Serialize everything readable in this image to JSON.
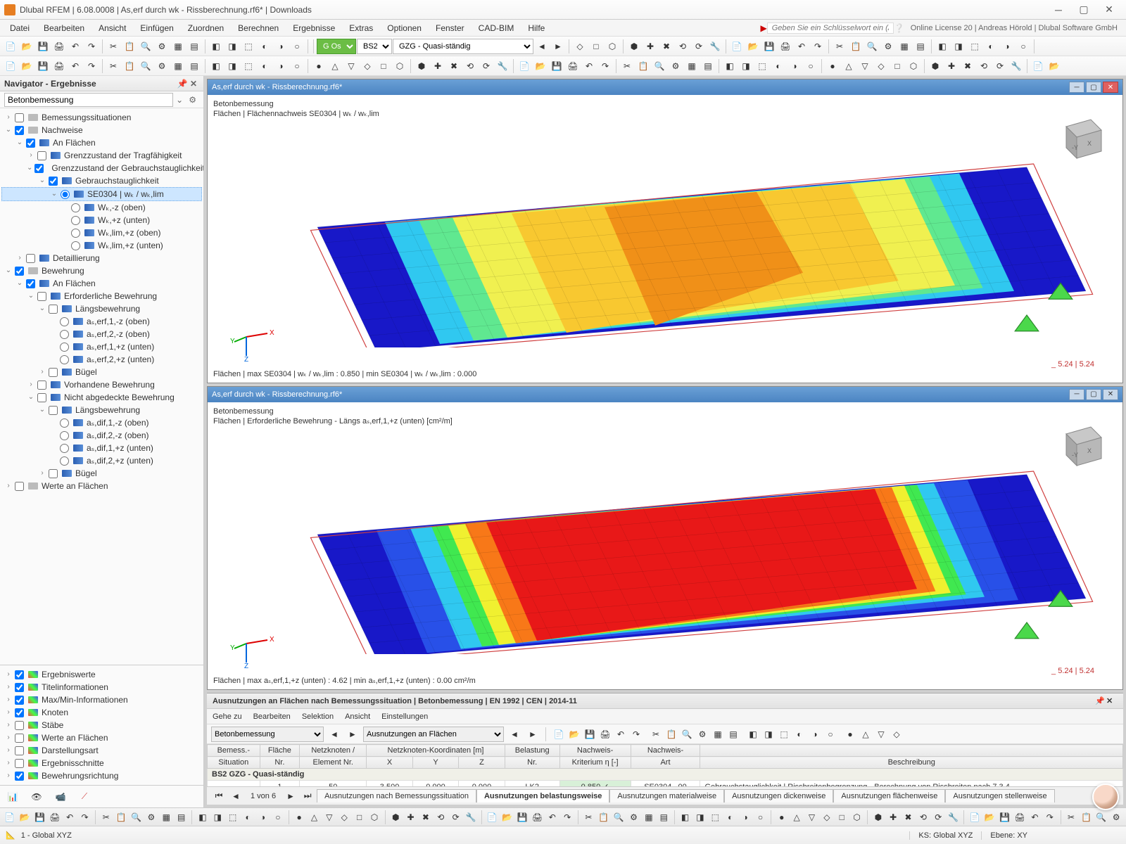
{
  "app": {
    "title": "Dlubal RFEM | 6.08.0008 | As,erf durch wk - Rissberechnung.rf6* | Downloads",
    "license": "Online License 20 | Andreas Hörold | Dlubal Software GmbH",
    "search_placeholder": "Geben Sie ein Schlüsselwort ein (Alt...)"
  },
  "menu": [
    "Datei",
    "Bearbeiten",
    "Ansicht",
    "Einfügen",
    "Zuordnen",
    "Berechnen",
    "Ergebnisse",
    "Extras",
    "Optionen",
    "Fenster",
    "CAD-BIM",
    "Hilfe"
  ],
  "dropdowns": {
    "goos": "G Os",
    "bs2": "BS2",
    "load": "GZG - Quasi-ständig"
  },
  "nav": {
    "title": "Navigator - Ergebnisse",
    "module": "Betonbemessung",
    "tree": [
      {
        "d": 0,
        "exp": ">",
        "cb": false,
        "ic": "gray",
        "lbl": "Bemessungssituationen"
      },
      {
        "d": 0,
        "exp": "v",
        "cb": true,
        "ic": "gray",
        "lbl": "Nachweise"
      },
      {
        "d": 1,
        "exp": "v",
        "cb": true,
        "ic": "blue",
        "lbl": "An Flächen"
      },
      {
        "d": 2,
        "exp": ">",
        "cb": false,
        "ic": "blue",
        "lbl": "Grenzzustand der Tragfähigkeit"
      },
      {
        "d": 2,
        "exp": "v",
        "cb": true,
        "ic": "blue",
        "lbl": "Grenzzustand der Gebrauchstauglichkeit"
      },
      {
        "d": 3,
        "exp": "v",
        "cb": true,
        "ic": "blue",
        "lbl": "Gebrauchstauglichkeit"
      },
      {
        "d": 4,
        "exp": "v",
        "radio": true,
        "checked": true,
        "ic": "blue",
        "lbl": "SE0304 | wₖ / wₖ,lim",
        "sel": true
      },
      {
        "d": 5,
        "radio": true,
        "ic": "blue",
        "lbl": "Wₖ,-z (oben)"
      },
      {
        "d": 5,
        "radio": true,
        "ic": "blue",
        "lbl": "Wₖ,+z (unten)"
      },
      {
        "d": 5,
        "radio": true,
        "ic": "blue",
        "lbl": "Wₖ,lim,+z (oben)"
      },
      {
        "d": 5,
        "radio": true,
        "ic": "blue",
        "lbl": "Wₖ,lim,+z (unten)"
      },
      {
        "d": 1,
        "exp": ">",
        "cb": false,
        "ic": "blue",
        "lbl": "Detaillierung"
      },
      {
        "d": 0,
        "exp": "v",
        "cb": true,
        "ic": "gray",
        "lbl": "Bewehrung"
      },
      {
        "d": 1,
        "exp": "v",
        "cb": true,
        "ic": "blue",
        "lbl": "An Flächen"
      },
      {
        "d": 2,
        "exp": "v",
        "cb": false,
        "ic": "blue",
        "lbl": "Erforderliche Bewehrung"
      },
      {
        "d": 3,
        "exp": "v",
        "cb": false,
        "ic": "blue",
        "lbl": "Längsbewehrung"
      },
      {
        "d": 4,
        "radio": true,
        "ic": "blue",
        "lbl": "aₛ,erf,1,-z (oben)"
      },
      {
        "d": 4,
        "radio": true,
        "ic": "blue",
        "lbl": "aₛ,erf,2,-z (oben)"
      },
      {
        "d": 4,
        "radio": true,
        "ic": "blue",
        "lbl": "aₛ,erf,1,+z (unten)"
      },
      {
        "d": 4,
        "radio": true,
        "ic": "blue",
        "lbl": "aₛ,erf,2,+z (unten)"
      },
      {
        "d": 3,
        "exp": ">",
        "cb": false,
        "ic": "blue",
        "lbl": "Bügel"
      },
      {
        "d": 2,
        "exp": ">",
        "cb": false,
        "ic": "blue",
        "lbl": "Vorhandene Bewehrung"
      },
      {
        "d": 2,
        "exp": "v",
        "cb": false,
        "ic": "blue",
        "lbl": "Nicht abgedeckte Bewehrung"
      },
      {
        "d": 3,
        "exp": "v",
        "cb": false,
        "ic": "blue",
        "lbl": "Längsbewehrung"
      },
      {
        "d": 4,
        "radio": true,
        "ic": "blue",
        "lbl": "aₛ,dif,1,-z (oben)"
      },
      {
        "d": 4,
        "radio": true,
        "ic": "blue",
        "lbl": "aₛ,dif,2,-z (oben)"
      },
      {
        "d": 4,
        "radio": true,
        "ic": "blue",
        "lbl": "aₛ,dif,1,+z (unten)"
      },
      {
        "d": 4,
        "radio": true,
        "ic": "blue",
        "lbl": "aₛ,dif,2,+z (unten)"
      },
      {
        "d": 3,
        "exp": ">",
        "cb": false,
        "ic": "blue",
        "lbl": "Bügel"
      },
      {
        "d": 0,
        "exp": ">",
        "cb": false,
        "ic": "gray",
        "lbl": "Werte an Flächen"
      }
    ],
    "options": [
      {
        "cb": true,
        "lbl": "Ergebniswerte"
      },
      {
        "cb": true,
        "lbl": "Titelinformationen"
      },
      {
        "cb": true,
        "lbl": "Max/Min-Informationen"
      },
      {
        "cb": true,
        "lbl": "Knoten"
      },
      {
        "cb": false,
        "lbl": "Stäbe"
      },
      {
        "cb": false,
        "lbl": "Werte an Flächen"
      },
      {
        "cb": false,
        "lbl": "Darstellungsart"
      },
      {
        "cb": false,
        "lbl": "Ergebnisschnitte"
      },
      {
        "cb": true,
        "lbl": "Bewehrungsrichtung"
      }
    ]
  },
  "views": {
    "top": {
      "title": "As,erf durch wk - Rissberechnung.rf6*",
      "l1": "Betonbemessung",
      "l2": "Flächen | Flächennachweis SE0304 | wₖ / wₖ,lim",
      "foot": "Flächen | max SE0304 | wₖ / wₖ,lim : 0.850 | min SE0304 | wₖ / wₖ,lim : 0.000",
      "dim": "_ 5.24 | 5.24",
      "colormap": [
        "#1818c8",
        "#2850e8",
        "#30c8f0",
        "#60e890",
        "#f0f050",
        "#f8c830",
        "#f09018"
      ]
    },
    "bot": {
      "title": "As,erf durch wk - Rissberechnung.rf6*",
      "l1": "Betonbemessung",
      "l2": "Flächen | Erforderliche Bewehrung - Längs aₛ,erf,1,+z (unten) [cm²/m]",
      "foot": "Flächen | max aₛ,erf,1,+z (unten) : 4.62 | min aₛ,erf,1,+z (unten) : 0.00 cm²/m",
      "dim": "_ 5.24 | 5.24",
      "colormap": [
        "#1818c8",
        "#2850e8",
        "#30c8f0",
        "#40e850",
        "#f0f030",
        "#f87818",
        "#e81818"
      ]
    }
  },
  "table": {
    "title": "Ausnutzungen an Flächen nach Bemessungssituation | Betonbemessung | EN 1992 | CEN | 2014-11",
    "menu": [
      "Gehe zu",
      "Bearbeiten",
      "Selektion",
      "Ansicht",
      "Einstellungen"
    ],
    "sel1": "Betonbemessung",
    "sel2": "Ausnutzungen an Flächen",
    "headers_top": [
      "Bemess.-",
      "Fläche",
      "Netzknoten /",
      "Netzknoten-Koordinaten [m]",
      "",
      "",
      "Belastung",
      "Nachweis-",
      "Nachweis-",
      ""
    ],
    "headers": [
      "Situation",
      "Nr.",
      "Element Nr.",
      "X",
      "Y",
      "Z",
      "Nr.",
      "Kriterium η [-]",
      "Art",
      "Beschreibung"
    ],
    "row_group": "BS2    GZG - Quasi-ständig",
    "row": [
      "",
      "1",
      "50",
      "3.500",
      "0.000",
      "0.000",
      "LK2",
      "0.850 ✓",
      "SE0304 . 00",
      "Gebrauchstauglichkeit | Rissbreitenbegrenzung - Berechnung von Rissbreiten nach 7.3.4"
    ],
    "page": "1 von 6",
    "tabs": [
      "Ausnutzungen nach Bemessungssituation",
      "Ausnutzungen belastungsweise",
      "Ausnutzungen materialweise",
      "Ausnutzungen dickenweise",
      "Ausnutzungen flächenweise",
      "Ausnutzungen stellenweise"
    ]
  },
  "status": {
    "coord": "1 - Global XYZ",
    "ks": "KS: Global XYZ",
    "ebene": "Ebene: XY"
  }
}
